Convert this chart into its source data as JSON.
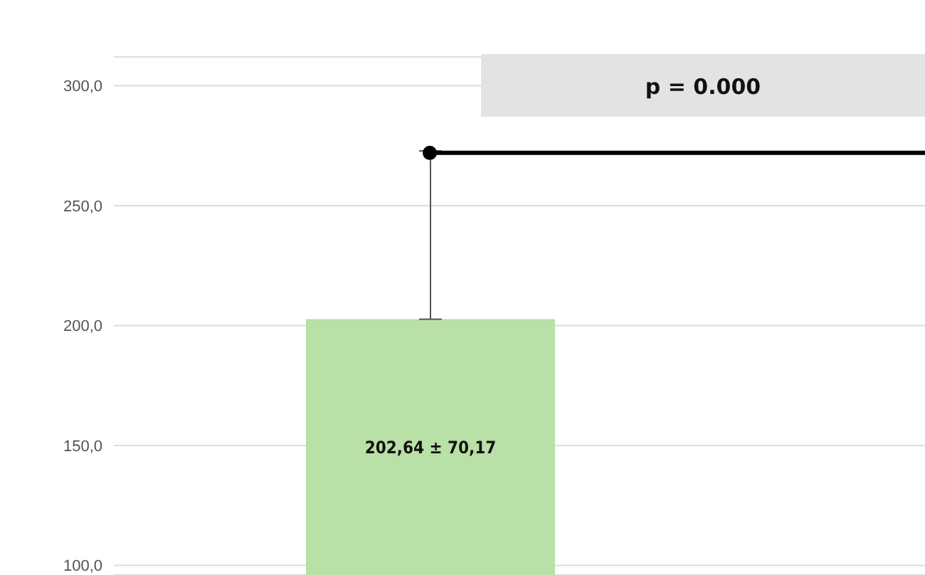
{
  "chart_data": {
    "type": "bar",
    "categories": [
      null
    ],
    "series": [
      {
        "color": "#b9e0a6",
        "values": [
          202.64
        ],
        "errors": [
          [
            202.64,
            272.81
          ]
        ],
        "value_labels": [
          "202,64 ± 70,17"
        ]
      }
    ],
    "ylim": [
      96,
      312
    ],
    "yticks": [
      {
        "value": 100,
        "label": "100,0"
      },
      {
        "value": 150,
        "label": "150,0"
      },
      {
        "value": 200,
        "label": "200,0"
      },
      {
        "value": 250,
        "label": "250,0"
      },
      {
        "value": 300,
        "label": "300,0"
      }
    ],
    "grid": "y",
    "tick_labels": "y",
    "legend": false,
    "ref_lines": [
      {
        "axis": "y",
        "value": 272,
        "color": "#000000"
      }
    ],
    "annotations": [
      "p = 0.000"
    ]
  }
}
